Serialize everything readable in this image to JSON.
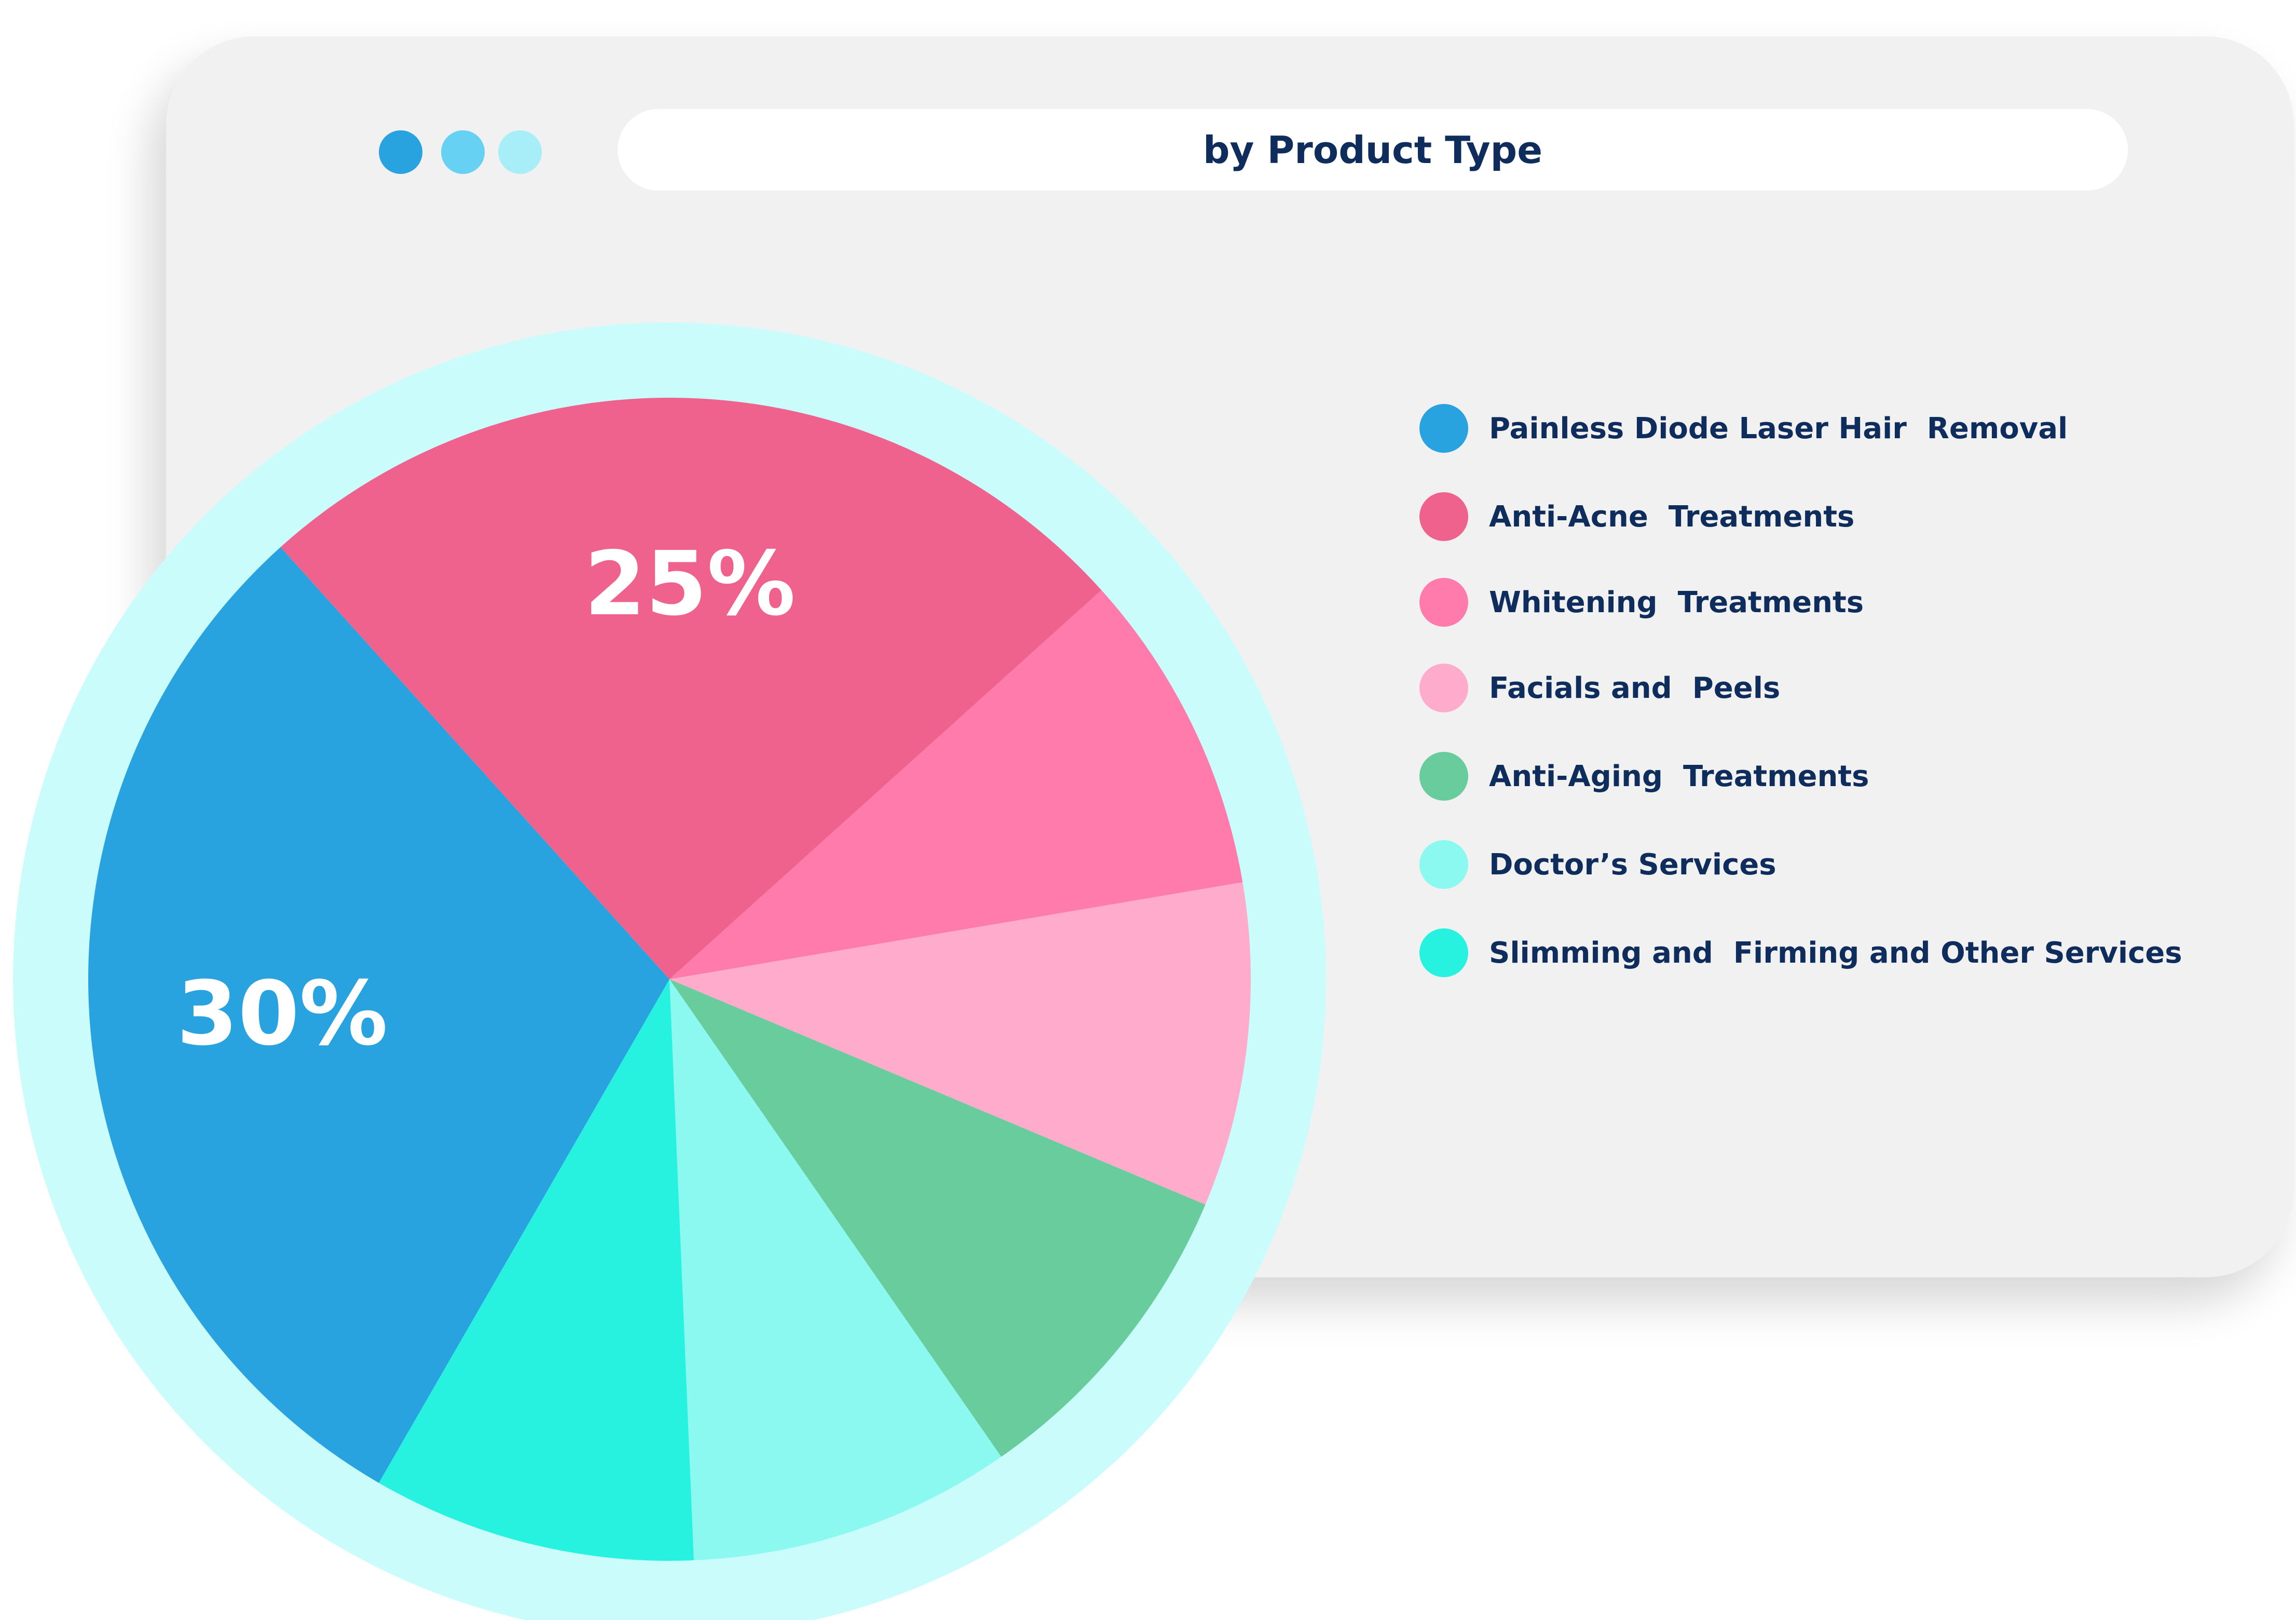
{
  "window": {
    "title": "by Product Type",
    "controls": [
      {
        "name": "window-dot-1",
        "color": "#29a3e0"
      },
      {
        "name": "window-dot-2",
        "color": "#66d1f2"
      },
      {
        "name": "window-dot-3",
        "color": "#a7eef9"
      }
    ]
  },
  "chart_data": {
    "type": "pie",
    "title": "by Product Type",
    "legend_placement": "right",
    "ring_color": "#cafcfc",
    "slices": [
      {
        "label": "Painless Diode Laser Hair  Removal",
        "value": 30,
        "color": "#29a3e0",
        "display": "30%"
      },
      {
        "label": "Anti-Acne  Treatments",
        "value": 25,
        "color": "#ef628d",
        "display": "25%"
      },
      {
        "label": "Whitening  Treatments",
        "value": 9,
        "color": "#ff7bac",
        "display": ""
      },
      {
        "label": "Facials and  Peels",
        "value": 9,
        "color": "#ffabcc",
        "display": ""
      },
      {
        "label": "Anti-Aging  Treatments",
        "value": 9,
        "color": "#69cc9d",
        "display": ""
      },
      {
        "label": "Doctor’s Services",
        "value": 9,
        "color": "#8cf9f0",
        "display": ""
      },
      {
        "label": "Slimming and  Firming and Other Services",
        "value": 9,
        "color": "#27f2e0",
        "display": ""
      }
    ]
  }
}
